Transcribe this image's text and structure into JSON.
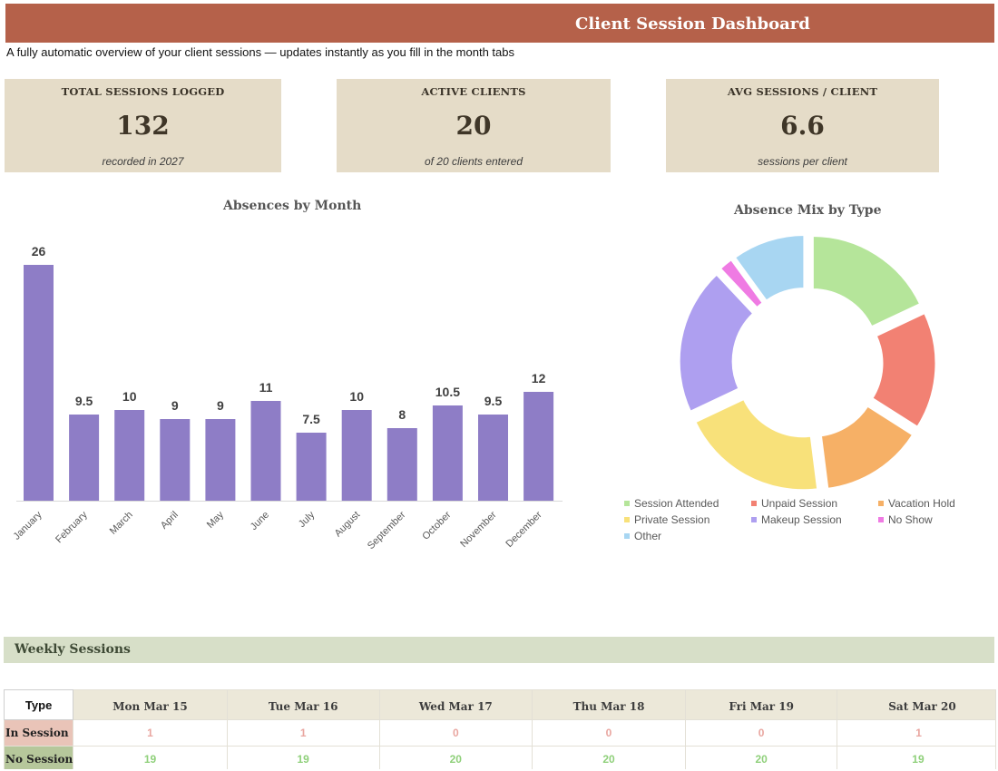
{
  "header": {
    "title": "Client Session Dashboard",
    "subtitle": "A fully automatic overview of your client sessions — updates instantly as you fill in the month tabs"
  },
  "kpis": [
    {
      "label": "TOTAL SESSIONS LOGGED",
      "value": "132",
      "note": "recorded in 2027"
    },
    {
      "label": "ACTIVE CLIENTS",
      "value": "20",
      "note": "of 20 clients entered"
    },
    {
      "label": "AVG SESSIONS / CLIENT",
      "value": "6.6",
      "note": "sessions per client"
    }
  ],
  "chart_data": [
    {
      "type": "bar",
      "title": "Absences by Month",
      "categories": [
        "January",
        "February",
        "March",
        "April",
        "May",
        "June",
        "July",
        "August",
        "September",
        "October",
        "November",
        "December"
      ],
      "values": [
        26,
        9.5,
        10,
        9,
        9,
        11,
        7.5,
        10,
        8,
        10.5,
        9.5,
        12
      ],
      "data_labels": [
        "26",
        "9.5",
        "10",
        "9",
        "9",
        "11",
        "7.5",
        "10",
        "8",
        "10.5",
        "9.5",
        "12"
      ],
      "xlabel": "",
      "ylabel": "",
      "ylim": [
        0,
        26
      ],
      "grid": false,
      "bar_color": "#8e7dc6"
    },
    {
      "type": "pie",
      "variant": "donut",
      "title": "Absence Mix by Type",
      "labels": [
        "Session Attended",
        "Unpaid Session",
        "Vacation Hold",
        "Private Session",
        "Makeup Session",
        "No Show",
        "Other"
      ],
      "values": [
        18,
        16,
        14,
        20,
        20,
        2,
        10
      ],
      "colors": [
        "#b5e59a",
        "#f28173",
        "#f6b066",
        "#f8e17a",
        "#ae9ff0",
        "#ef7be3",
        "#a8d6f2"
      ],
      "legend_position": "bottom"
    }
  ],
  "weekly": {
    "section_title": "Weekly Sessions",
    "type_header": "Type",
    "days": [
      "Mon  Mar 15",
      "Tue  Mar 16",
      "Wed  Mar 17",
      "Thu  Mar 18",
      "Fri  Mar 19",
      "Sat  Mar 20"
    ],
    "rows": [
      {
        "label": "In Session",
        "values": [
          "1",
          "1",
          "0",
          "0",
          "0",
          "1"
        ]
      },
      {
        "label": "No Session",
        "values": [
          "19",
          "19",
          "20",
          "20",
          "20",
          "19"
        ]
      }
    ]
  }
}
